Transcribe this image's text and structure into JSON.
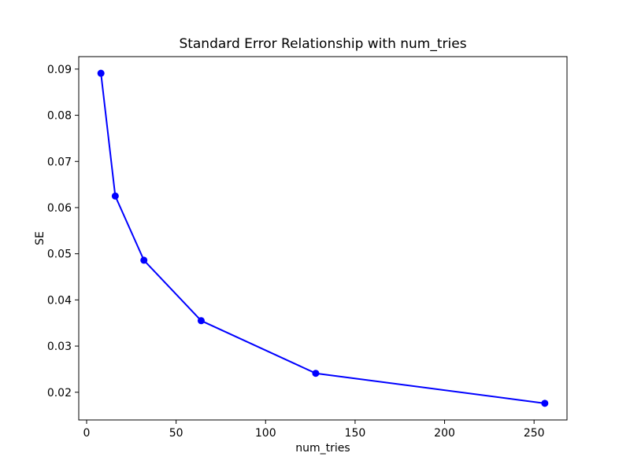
{
  "figure": {
    "background": "#ffffff"
  },
  "chart_data": {
    "type": "line",
    "title": "Standard Error Relationship with num_tries",
    "xlabel": "num_tries",
    "ylabel": "SE",
    "x": [
      8,
      16,
      32,
      64,
      128,
      256
    ],
    "y": [
      0.0891,
      0.0625,
      0.0486,
      0.0355,
      0.0241,
      0.0176
    ],
    "x_ticks": [
      0,
      50,
      100,
      150,
      200,
      250
    ],
    "y_ticks": [
      0.02,
      0.03,
      0.04,
      0.05,
      0.06,
      0.07,
      0.08,
      0.09
    ],
    "xlim": [
      -4.4,
      268.4
    ],
    "ylim": [
      0.014,
      0.0927
    ],
    "line_color": "#0000ff",
    "marker": "circle",
    "marker_color": "#0000ff",
    "axes_color": "#000000",
    "text_color": "#000000",
    "grid": false,
    "legend": "none"
  }
}
